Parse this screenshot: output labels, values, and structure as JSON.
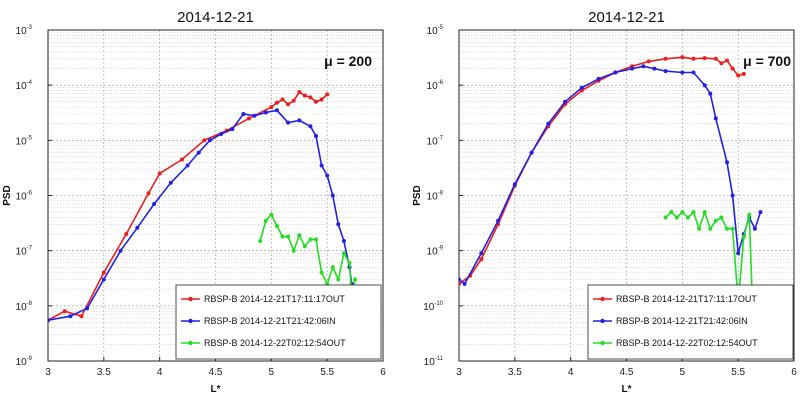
{
  "chart_data": [
    {
      "type": "line",
      "title": "2014-12-21",
      "xlabel": "L*",
      "ylabel": "PSD",
      "annotation": "μ = 200",
      "xlim": [
        3,
        6
      ],
      "ylim_exp": [
        -9,
        -3
      ],
      "y_scale": "log",
      "x_ticks": [
        "3",
        "3.5",
        "4",
        "4.5",
        "5",
        "5.5",
        "6"
      ],
      "y_ticks": [
        {
          "base": "10",
          "exp": "-9",
          "value_exp": -9
        },
        {
          "base": "10",
          "exp": "-8",
          "value_exp": -8
        },
        {
          "base": "10",
          "exp": "-7",
          "value_exp": -7
        },
        {
          "base": "10",
          "exp": "-6",
          "value_exp": -6
        },
        {
          "base": "10",
          "exp": "-5",
          "value_exp": -5
        },
        {
          "base": "10",
          "exp": "-4",
          "value_exp": -4
        },
        {
          "base": "10",
          "exp": "-3",
          "value_exp": -3
        }
      ],
      "grid": true,
      "legend_position": "bottom-right",
      "series": [
        {
          "name": "RBSP-B 2014-12-21T17:11:17OUT",
          "color": "#ee1c1c",
          "x": [
            3.0,
            3.15,
            3.3,
            3.5,
            3.7,
            3.9,
            4.0,
            4.2,
            4.4,
            4.6,
            4.8,
            5.0,
            5.05,
            5.1,
            5.15,
            5.2,
            5.25,
            5.3,
            5.35,
            5.4,
            5.45,
            5.5
          ],
          "y": [
            5.5e-09,
            8e-09,
            6.5e-09,
            4e-08,
            2e-07,
            1.1e-06,
            2.5e-06,
            4.5e-06,
            1e-05,
            1.5e-05,
            2.5e-05,
            4e-05,
            4.8e-05,
            5.5e-05,
            4.5e-05,
            5.2e-05,
            7.5e-05,
            6.5e-05,
            6e-05,
            5e-05,
            5.5e-05,
            6.8e-05
          ]
        },
        {
          "name": "RBSP-B 2014-12-21T21:42:06IN",
          "color": "#2020e6",
          "x": [
            3.0,
            3.2,
            3.35,
            3.5,
            3.65,
            3.8,
            3.95,
            4.1,
            4.25,
            4.35,
            4.45,
            4.55,
            4.65,
            4.75,
            4.85,
            4.95,
            5.05,
            5.15,
            5.25,
            5.35,
            5.4,
            5.45,
            5.5,
            5.55,
            5.6,
            5.65,
            5.7,
            5.72,
            5.74
          ],
          "y": [
            5.5e-09,
            6.5e-09,
            9e-09,
            3e-08,
            1e-07,
            2.6e-07,
            7e-07,
            1.7e-06,
            3.5e-06,
            6e-06,
            1e-05,
            1.3e-05,
            1.6e-05,
            3e-05,
            2.8e-05,
            3.2e-05,
            3.5e-05,
            2.1e-05,
            2.3e-05,
            1.8e-05,
            1.2e-05,
            3.5e-06,
            2.3e-06,
            1e-06,
            3e-07,
            1.5e-07,
            5e-08,
            2.5e-08,
            1.5e-08
          ]
        },
        {
          "name": "RBSP-B 2014-12-22T02:12:54OUT",
          "color": "#22dd22",
          "x": [
            4.9,
            4.95,
            5.0,
            5.05,
            5.1,
            5.15,
            5.2,
            5.25,
            5.3,
            5.35,
            5.4,
            5.45,
            5.5,
            5.55,
            5.6,
            5.65,
            5.7,
            5.72,
            5.75
          ],
          "y": [
            1.5e-07,
            3.5e-07,
            4.5e-07,
            2.8e-07,
            1.8e-07,
            1.8e-07,
            1e-07,
            1.9e-07,
            1.2e-07,
            1.6e-07,
            1.6e-07,
            4e-08,
            2.5e-08,
            5e-08,
            3e-08,
            9e-08,
            6e-08,
            1.5e-08,
            3e-08
          ]
        }
      ]
    },
    {
      "type": "line",
      "title": "2014-12-21",
      "xlabel": "L*",
      "ylabel": "PSD",
      "annotation": "μ = 700",
      "xlim": [
        3,
        6
      ],
      "ylim_exp": [
        -11,
        -5
      ],
      "y_scale": "log",
      "x_ticks": [
        "3",
        "3.5",
        "4",
        "4.5",
        "5",
        "5.5",
        "6"
      ],
      "y_ticks": [
        {
          "base": "10",
          "exp": "-11",
          "value_exp": -11
        },
        {
          "base": "10",
          "exp": "-10",
          "value_exp": -10
        },
        {
          "base": "10",
          "exp": "-9",
          "value_exp": -9
        },
        {
          "base": "10",
          "exp": "-8",
          "value_exp": -8
        },
        {
          "base": "10",
          "exp": "-7",
          "value_exp": -7
        },
        {
          "base": "10",
          "exp": "-6",
          "value_exp": -6
        },
        {
          "base": "10",
          "exp": "-5",
          "value_exp": -5
        }
      ],
      "grid": true,
      "legend_position": "bottom-right",
      "series": [
        {
          "name": "RBSP-B 2014-12-21T17:11:17OUT",
          "color": "#ee1c1c",
          "x": [
            3.0,
            3.1,
            3.2,
            3.35,
            3.5,
            3.65,
            3.8,
            3.95,
            4.1,
            4.25,
            4.4,
            4.55,
            4.7,
            4.85,
            5.0,
            5.1,
            5.2,
            5.3,
            5.35,
            5.4,
            5.45,
            5.5,
            5.55
          ],
          "y": [
            2.5e-10,
            3.5e-10,
            7e-10,
            3e-09,
            1.5e-08,
            6e-08,
            1.8e-07,
            4.5e-07,
            8e-07,
            1.2e-06,
            1.7e-06,
            2.2e-06,
            2.7e-06,
            3e-06,
            3.2e-06,
            3e-06,
            3.1e-06,
            3e-06,
            2.5e-06,
            2.8e-06,
            2e-06,
            1.5e-06,
            1.6e-06
          ]
        },
        {
          "name": "RBSP-B 2014-12-21T21:42:06IN",
          "color": "#2020e6",
          "x": [
            3.0,
            3.05,
            3.2,
            3.35,
            3.5,
            3.65,
            3.8,
            3.95,
            4.1,
            4.25,
            4.4,
            4.55,
            4.65,
            4.75,
            4.85,
            5.0,
            5.1,
            5.2,
            5.25,
            5.3,
            5.4,
            5.45,
            5.5,
            5.55,
            5.6,
            5.65,
            5.7
          ],
          "y": [
            3e-10,
            2.5e-10,
            9e-10,
            3.5e-09,
            1.6e-08,
            6e-08,
            2e-07,
            5e-07,
            9e-07,
            1.3e-06,
            1.7e-06,
            2e-06,
            2.2e-06,
            2e-06,
            1.8e-06,
            1.7e-06,
            1.7e-06,
            1e-06,
            7e-07,
            2.5e-07,
            4e-08,
            1e-08,
            9e-10,
            2e-09,
            4e-09,
            2.5e-09,
            5e-09
          ]
        },
        {
          "name": "RBSP-B 2014-12-22T02:12:54OUT",
          "color": "#22dd22",
          "x": [
            4.85,
            4.9,
            4.95,
            5.0,
            5.05,
            5.1,
            5.15,
            5.2,
            5.25,
            5.3,
            5.35,
            5.4,
            5.45,
            5.5,
            5.55,
            5.6,
            5.63
          ],
          "y": [
            4e-09,
            5e-09,
            4e-09,
            5e-09,
            4e-09,
            5e-09,
            2.5e-09,
            5e-09,
            2.5e-09,
            3.5e-09,
            4e-09,
            2.5e-09,
            2.5e-09,
            1.2e-10,
            1.8e-09,
            4.5e-09,
            8e-11
          ]
        }
      ]
    }
  ]
}
